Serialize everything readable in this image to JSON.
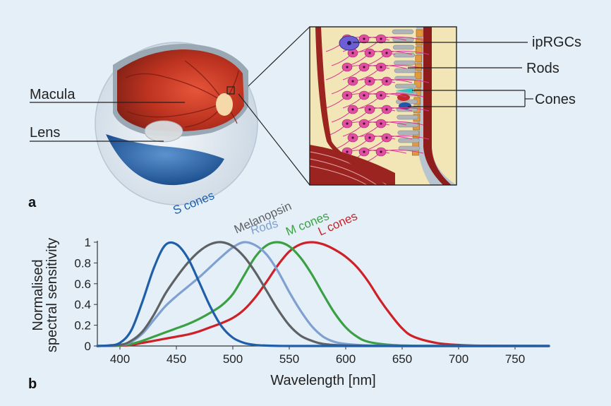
{
  "panel_a": {
    "panel_label": "a",
    "labels": {
      "macula": "Macula",
      "lens": "Lens",
      "iprgcs": "ipRGCs",
      "rods": "Rods",
      "cones": "Cones"
    }
  },
  "panel_b": {
    "panel_label": "b"
  },
  "colors": {
    "background": "#e4eff8",
    "s_cones": "#1f5ea8",
    "melanopsin": "#5f6265",
    "rods": "#7fa0d0",
    "m_cones": "#3aa043",
    "l_cones": "#cf2027"
  },
  "chart_data": {
    "type": "line",
    "title": "",
    "xlabel": "Wavelength [nm]",
    "ylabel": "Normalised\nspectral sensitivity",
    "xlim": [
      380,
      780
    ],
    "ylim": [
      0,
      1
    ],
    "xticks": [
      400,
      450,
      500,
      550,
      600,
      650,
      700,
      750
    ],
    "yticks": [
      0,
      0.2,
      0.4,
      0.6,
      0.8,
      1
    ],
    "ytick_labels": [
      "0",
      "0.2",
      "0.4",
      "0.6",
      "0.8",
      "1"
    ],
    "grid": false,
    "legend": "none (series labelled directly above peaks)",
    "series": [
      {
        "name": "S cones",
        "color": "#1f5ea8",
        "x": [
          380,
          390,
          400,
          410,
          420,
          430,
          440,
          450,
          460,
          470,
          480,
          490,
          500,
          510,
          520,
          530,
          540,
          550,
          560,
          600,
          700,
          780
        ],
        "y": [
          0,
          0.005,
          0.03,
          0.15,
          0.43,
          0.75,
          0.97,
          0.98,
          0.85,
          0.62,
          0.38,
          0.19,
          0.08,
          0.03,
          0.01,
          0.004,
          0.001,
          0,
          0,
          0,
          0,
          0
        ]
      },
      {
        "name": "Melanopsin",
        "color": "#5f6265",
        "x": [
          380,
          400,
          410,
          420,
          430,
          440,
          450,
          460,
          470,
          480,
          490,
          500,
          510,
          520,
          530,
          540,
          550,
          560,
          570,
          580,
          600,
          650,
          700,
          780
        ],
        "y": [
          0,
          0.01,
          0.05,
          0.14,
          0.3,
          0.5,
          0.66,
          0.8,
          0.91,
          0.98,
          1.0,
          0.96,
          0.86,
          0.71,
          0.53,
          0.35,
          0.2,
          0.1,
          0.05,
          0.02,
          0.005,
          0,
          0,
          0
        ]
      },
      {
        "name": "Rods",
        "color": "#7fa0d0",
        "x": [
          380,
          400,
          410,
          420,
          430,
          440,
          450,
          460,
          470,
          480,
          490,
          500,
          510,
          520,
          530,
          540,
          550,
          560,
          570,
          580,
          590,
          600,
          620,
          650,
          700,
          780
        ],
        "y": [
          0,
          0.01,
          0.04,
          0.12,
          0.25,
          0.38,
          0.48,
          0.57,
          0.66,
          0.76,
          0.86,
          0.95,
          1.0,
          0.97,
          0.88,
          0.72,
          0.52,
          0.34,
          0.19,
          0.09,
          0.04,
          0.02,
          0.005,
          0,
          0,
          0
        ]
      },
      {
        "name": "M cones",
        "color": "#3aa043",
        "x": [
          380,
          400,
          410,
          420,
          430,
          440,
          450,
          460,
          470,
          480,
          490,
          500,
          510,
          520,
          530,
          540,
          550,
          560,
          570,
          580,
          590,
          600,
          610,
          620,
          640,
          660,
          700,
          780
        ],
        "y": [
          0,
          0.005,
          0.02,
          0.05,
          0.09,
          0.13,
          0.17,
          0.21,
          0.26,
          0.32,
          0.39,
          0.5,
          0.68,
          0.86,
          0.97,
          1.0,
          0.96,
          0.85,
          0.69,
          0.5,
          0.32,
          0.18,
          0.09,
          0.04,
          0.01,
          0.002,
          0,
          0
        ]
      },
      {
        "name": "L cones",
        "color": "#cf2027",
        "x": [
          380,
          400,
          410,
          420,
          430,
          440,
          450,
          460,
          470,
          480,
          490,
          500,
          510,
          520,
          530,
          540,
          550,
          560,
          570,
          580,
          590,
          600,
          610,
          620,
          630,
          640,
          650,
          660,
          680,
          700,
          720,
          780
        ],
        "y": [
          0,
          0.003,
          0.01,
          0.03,
          0.05,
          0.07,
          0.09,
          0.11,
          0.14,
          0.18,
          0.22,
          0.27,
          0.35,
          0.47,
          0.62,
          0.78,
          0.91,
          0.98,
          1.0,
          0.98,
          0.93,
          0.86,
          0.76,
          0.62,
          0.45,
          0.3,
          0.17,
          0.09,
          0.03,
          0.01,
          0.003,
          0
        ]
      }
    ]
  }
}
